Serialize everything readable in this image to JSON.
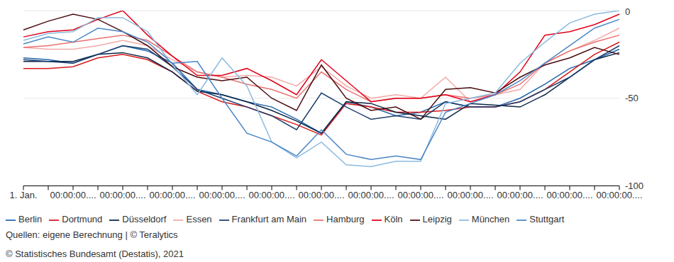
{
  "chart_data": {
    "type": "line",
    "categories": [
      "1. Jan.",
      null,
      "00:00:00....",
      null,
      "00:00:00....",
      null,
      "00:00:00....",
      null,
      "00:00:00....",
      null,
      "00:00:00....",
      null,
      "00:00:00....",
      null,
      "00:00:00....",
      null,
      "00:00:00....",
      null,
      "00:00:00....",
      null,
      "00:00:00....",
      null,
      "00:00:00....",
      null,
      "00:00:00...."
    ],
    "ylim": [
      -100,
      0
    ],
    "yticks": [
      -100,
      -50,
      0
    ],
    "grid": true,
    "legend": "bottom",
    "series": [
      {
        "name": "Berlin",
        "color": "#2166ac",
        "values": [
          -27,
          -28,
          -30,
          -25,
          -20,
          -23,
          -30,
          -45,
          -48,
          -52,
          -55,
          -62,
          -70,
          -52,
          -55,
          -60,
          -58,
          -52,
          -55,
          -55,
          -50,
          -42,
          -33,
          -28,
          -22
        ]
      },
      {
        "name": "Dortmund",
        "color": "#d7191c",
        "values": [
          -33,
          -33,
          -32,
          -27,
          -25,
          -28,
          -35,
          -46,
          -52,
          -55,
          -60,
          -65,
          -71,
          -53,
          -55,
          -58,
          -58,
          -57,
          -55,
          -55,
          -52,
          -45,
          -35,
          -25,
          -18
        ]
      },
      {
        "name": "Düsseldorf",
        "color": "#0b2545",
        "values": [
          -29,
          -29,
          -29,
          -25,
          -24,
          -27,
          -35,
          -46,
          -48,
          -52,
          -57,
          -63,
          -70,
          -52,
          -53,
          -58,
          -60,
          -62,
          -53,
          -54,
          -55,
          -48,
          -38,
          -28,
          -24
        ]
      },
      {
        "name": "Essen",
        "color": "#f4a9a8",
        "values": [
          -21,
          -22,
          -22,
          -20,
          -17,
          -20,
          -28,
          -35,
          -38,
          -37,
          -38,
          -43,
          -32,
          -43,
          -50,
          -48,
          -50,
          -38,
          -52,
          -48,
          -45,
          -30,
          -23,
          -17,
          -10
        ]
      },
      {
        "name": "Frankfurt am Main",
        "color": "#1d3f6e",
        "values": [
          -28,
          -29,
          -30,
          -25,
          -20,
          -22,
          -32,
          -45,
          -50,
          -55,
          -60,
          -68,
          -47,
          -55,
          -62,
          -60,
          -62,
          -52,
          -55,
          -55,
          -52,
          -45,
          -38,
          -28,
          -20
        ]
      },
      {
        "name": "Hamburg",
        "color": "#ec7070",
        "values": [
          -21,
          -20,
          -18,
          -16,
          -14,
          -17,
          -26,
          -35,
          -38,
          -42,
          -45,
          -50,
          -35,
          -45,
          -52,
          -50,
          -50,
          -48,
          -50,
          -48,
          -42,
          -30,
          -23,
          -18,
          -14
        ]
      },
      {
        "name": "Köln",
        "color": "#e2001a",
        "values": [
          -15,
          -12,
          -11,
          -5,
          0,
          -14,
          -26,
          -37,
          -37,
          -33,
          -40,
          -48,
          -28,
          -40,
          -52,
          -50,
          -50,
          -48,
          -52,
          -48,
          -35,
          -14,
          -12,
          -8,
          -2
        ]
      },
      {
        "name": "Leipzig",
        "color": "#4a0d10",
        "values": [
          -11,
          -6,
          -2,
          -5,
          -12,
          -20,
          -32,
          -38,
          -40,
          -38,
          -50,
          -57,
          -31,
          -50,
          -57,
          -55,
          -62,
          -45,
          -44,
          -47,
          -38,
          -31,
          -27,
          -21,
          -25
        ]
      },
      {
        "name": "München",
        "color": "#8bbbe0",
        "values": [
          -17,
          -13,
          -12,
          -4,
          -4,
          -12,
          -31,
          -48,
          -27,
          -43,
          -75,
          -84,
          -75,
          -88,
          -89,
          -86,
          -86,
          -53,
          -50,
          -47,
          -30,
          -18,
          -7,
          -2,
          0
        ]
      },
      {
        "name": "Stuttgart",
        "color": "#4a86c5",
        "values": [
          -19,
          -15,
          -18,
          -10,
          -12,
          -18,
          -30,
          -29,
          -50,
          -70,
          -75,
          -83,
          -68,
          -82,
          -85,
          -83,
          -85,
          -58,
          -53,
          -48,
          -40,
          -30,
          -20,
          -10,
          -5
        ]
      }
    ],
    "source": "Quellen: eigene Berechnung | © Teralytics",
    "copyright": "© Statistisches Bundesamt (Destatis), 2021"
  }
}
